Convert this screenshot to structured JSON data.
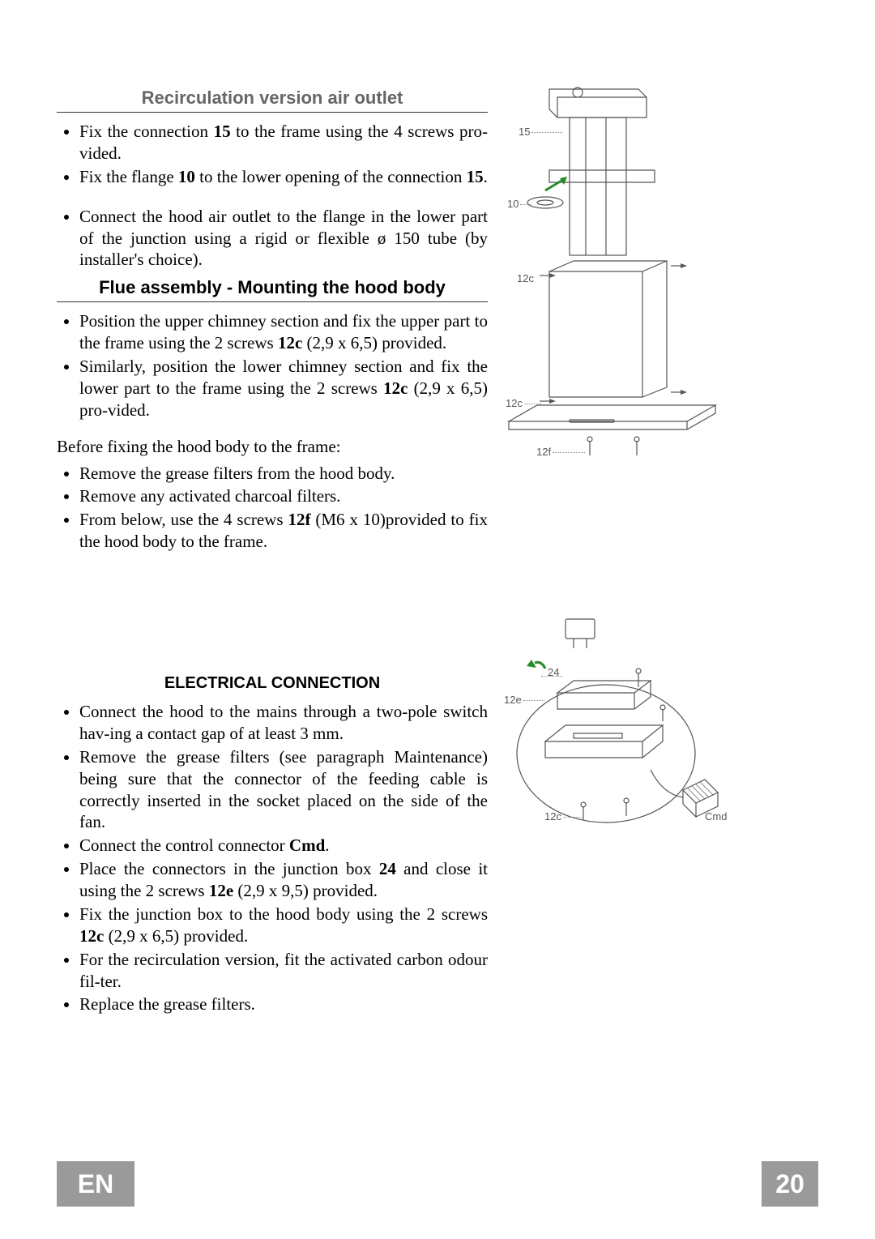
{
  "section1": {
    "title": "Recirculation version air outlet",
    "items": [
      "Fix   the connection <b>15</b> to the frame using the 4 screws pro-vided.",
      "Fix the flange <b>10</b> to the lower opening of the connection <b>15</b>.",
      "Connect the hood air outlet to the flange in the lower part of the junction using a rigid or flexible ø 150 tube (by installer's choice)."
    ]
  },
  "section2": {
    "title": "Flue assembly - Mounting the hood body",
    "items": [
      "Position the upper chimney section and fix the upper part to the frame using the 2 screws <b>12c</b> (2,9 x 6,5) provided.",
      "Similarly, position the lower chimney section   and fix the lower part to the frame using the 2 screws <b>12c</b> (2,9 x 6,5) pro-vided."
    ],
    "paragraph": "Before fixing the hood body to the frame:",
    "items2": [
      "Remove the grease filters from the hood body.",
      "Remove any activated charcoal filters.",
      "From below, use the 4 screws <b>12f</b>  (M6 x 10)provided to fix the hood body to the frame."
    ]
  },
  "section3": {
    "title": "ELECTRICAL CONNECTION",
    "items": [
      "Connect the hood to the mains through a two-pole switch hav-ing a contact gap of at least 3 mm.",
      "Remove the grease filters (see paragraph Maintenance) being sure that the connector of the feeding cable is correctly inserted in the socket placed on the side of the fan.",
      "Connect the control connector <b>Cmd</b>.",
      "Place the connectors in the junction box <b>24</b> and close it using the 2 screws <b>12e</b> (2,9 x 9,5) provided.",
      "Fix the junction box to the hood body using the 2 screws <b>12c</b>  (2,9 x 6,5) provided.",
      "For the recirculation version, fit the activated carbon odour fil-ter.",
      "Replace the grease filters."
    ]
  },
  "fig1": {
    "labels": {
      "a": "15",
      "b": "10",
      "c": "12c",
      "d": "12c",
      "e": "12f"
    },
    "label_fontsize": 13,
    "stroke": "#555555",
    "fill": "#ffffff"
  },
  "fig2": {
    "labels": {
      "a": "24",
      "b": "12e",
      "c": "12c",
      "d": "Cmd"
    },
    "label_fontsize": 13,
    "stroke": "#555555"
  },
  "footer": {
    "lang": "EN",
    "page": "20",
    "bg": "#9a9a9a",
    "fg": "#ffffff"
  },
  "style": {
    "title_color": "#666666",
    "title_fontsize": 22,
    "body_fontsize": 21,
    "subtitle_fontsize": 20,
    "page_bg": "#ffffff"
  }
}
